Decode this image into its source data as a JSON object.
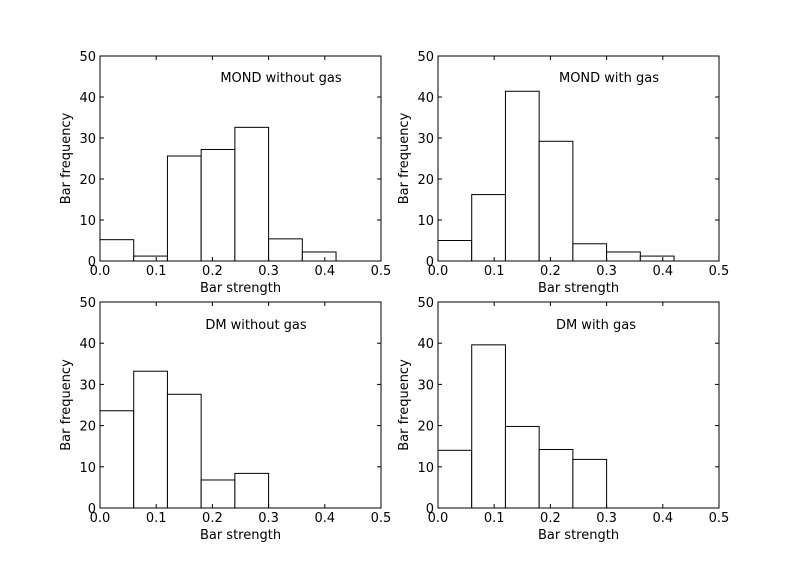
{
  "chart_data": [
    {
      "type": "bar",
      "title": "MOND without gas",
      "xlabel": "Bar strength",
      "ylabel": "Bar frequency",
      "xlim": [
        0.0,
        0.5
      ],
      "ylim": [
        0,
        50
      ],
      "xticks": [
        "0.0",
        "0.1",
        "0.2",
        "0.3",
        "0.4",
        "0.5"
      ],
      "yticks": [
        "0",
        "10",
        "20",
        "30",
        "40",
        "50"
      ],
      "bin_edges": [
        0.0,
        0.06,
        0.12,
        0.18,
        0.24,
        0.3,
        0.36,
        0.42
      ],
      "values": [
        5.2,
        1.2,
        25.6,
        27.2,
        32.6,
        5.4,
        2.2
      ]
    },
    {
      "type": "bar",
      "title": "MOND with gas",
      "xlabel": "Bar strength",
      "ylabel": "Bar frequency",
      "xlim": [
        0.0,
        0.5
      ],
      "ylim": [
        0,
        50
      ],
      "xticks": [
        "0.0",
        "0.1",
        "0.2",
        "0.3",
        "0.4",
        "0.5"
      ],
      "yticks": [
        "0",
        "10",
        "20",
        "30",
        "40",
        "50"
      ],
      "bin_edges": [
        0.0,
        0.06,
        0.12,
        0.18,
        0.24,
        0.3,
        0.36,
        0.42
      ],
      "values": [
        5.0,
        16.2,
        41.4,
        29.2,
        4.2,
        2.2,
        1.2
      ]
    },
    {
      "type": "bar",
      "title": "DM without gas",
      "xlabel": "Bar strength",
      "ylabel": "Bar frequency",
      "xlim": [
        0.0,
        0.5
      ],
      "ylim": [
        0,
        50
      ],
      "xticks": [
        "0.0",
        "0.1",
        "0.2",
        "0.3",
        "0.4",
        "0.5"
      ],
      "yticks": [
        "0",
        "10",
        "20",
        "30",
        "40",
        "50"
      ],
      "bin_edges": [
        0.0,
        0.06,
        0.12,
        0.18,
        0.24,
        0.3
      ],
      "values": [
        23.6,
        33.2,
        27.6,
        6.8,
        8.4
      ]
    },
    {
      "type": "bar",
      "title": "DM with gas",
      "xlabel": "Bar strength",
      "ylabel": "Bar frequency",
      "xlim": [
        0.0,
        0.5
      ],
      "ylim": [
        0,
        50
      ],
      "xticks": [
        "0.0",
        "0.1",
        "0.2",
        "0.3",
        "0.4",
        "0.5"
      ],
      "yticks": [
        "0",
        "10",
        "20",
        "30",
        "40",
        "50"
      ],
      "bin_edges": [
        0.0,
        0.06,
        0.12,
        0.18,
        0.24,
        0.3
      ],
      "values": [
        14.0,
        39.6,
        19.8,
        14.2,
        11.8
      ]
    }
  ]
}
